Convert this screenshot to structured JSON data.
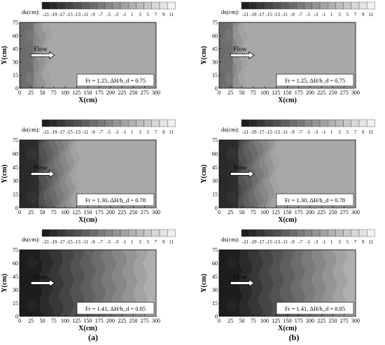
{
  "figure": {
    "caption_left": "(a)",
    "caption_right": "(b)",
    "legend_label": "ds(cm):",
    "legend_ticks": [
      "-21",
      "-19",
      "-17",
      "-15",
      "-13",
      "-11",
      "-9",
      "-7",
      "-5",
      "-3",
      "-1",
      "1",
      "3",
      "5",
      "7",
      "9",
      "11"
    ],
    "flow_label": "Flow",
    "xlabel": "X(cm)",
    "ylabel": "Y(cm)",
    "xticks": [
      0,
      25,
      50,
      75,
      100,
      125,
      150,
      175,
      200,
      225,
      250,
      275,
      300
    ],
    "yticks": [
      0,
      15,
      30,
      45,
      60,
      75
    ]
  },
  "chart_data": [
    {
      "type": "heatmap",
      "panel": "a-top",
      "annotation": "Fr = 1.25, ΔH/h_d = 0.75",
      "xlim": [
        0,
        300
      ],
      "ylim": [
        0,
        75
      ],
      "scour_zone_x": [
        0,
        80
      ],
      "min_depth_cm": -9,
      "far_field_cm": 0
    },
    {
      "type": "heatmap",
      "panel": "b-top",
      "annotation": "Fr = 1.25, ΔH/h_d = 0.75",
      "xlim": [
        0,
        300
      ],
      "ylim": [
        0,
        75
      ],
      "scour_zone_x": [
        0,
        70
      ],
      "min_depth_cm": -9,
      "far_field_cm": 0
    },
    {
      "type": "heatmap",
      "panel": "a-mid",
      "annotation": "Fr = 1.30, ΔH/h_d = 0.78",
      "xlim": [
        0,
        300
      ],
      "ylim": [
        0,
        75
      ],
      "scour_zone_x": [
        0,
        140
      ],
      "min_depth_cm": -19,
      "far_field_cm": 0
    },
    {
      "type": "heatmap",
      "panel": "b-mid",
      "annotation": "Fr = 1.30, ΔH/h_d = 0.78",
      "xlim": [
        0,
        300
      ],
      "ylim": [
        0,
        75
      ],
      "scour_zone_x": [
        0,
        140
      ],
      "min_depth_cm": -19,
      "far_field_cm": 0
    },
    {
      "type": "heatmap",
      "panel": "a-bot",
      "annotation": "Fr = 1.41, ΔH/h_d = 0.85",
      "xlim": [
        0,
        300
      ],
      "ylim": [
        0,
        75
      ],
      "scour_zone_x": [
        0,
        300
      ],
      "min_depth_cm": -21,
      "far_field_cm": 1
    },
    {
      "type": "heatmap",
      "panel": "b-bot",
      "annotation": "Fr = 1.41, ΔH/h_d = 0.85",
      "xlim": [
        0,
        300
      ],
      "ylim": [
        0,
        75
      ],
      "scour_zone_x": [
        0,
        300
      ],
      "min_depth_cm": -21,
      "far_field_cm": 1
    }
  ]
}
